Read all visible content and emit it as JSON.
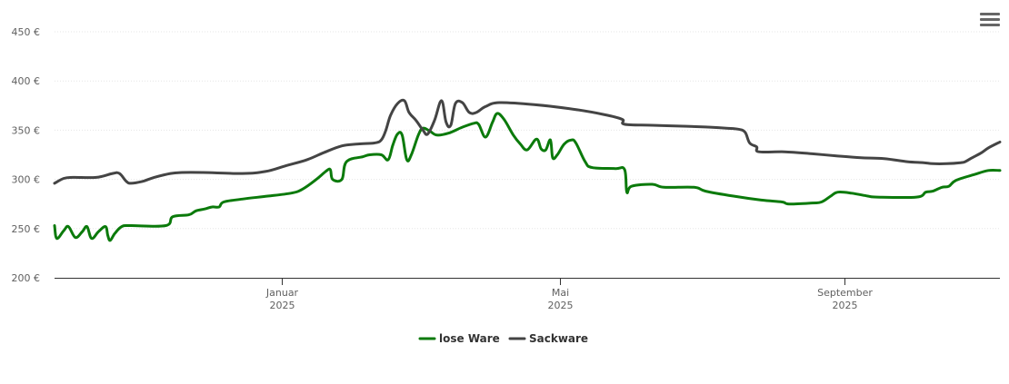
{
  "colors": {
    "lose_ware": "#0b7a0b",
    "sackware": "#444444",
    "axis": "#333333",
    "grid": "#e6e6e6"
  },
  "menu": {
    "icon": "hamburger-menu-icon"
  },
  "chart_data": {
    "type": "line",
    "title": "",
    "xlabel": "",
    "ylabel": "",
    "ylim": [
      200,
      450
    ],
    "y_ticks": [
      200,
      250,
      300,
      350,
      400,
      450
    ],
    "y_tick_labels": [
      "200 €",
      "250 €",
      "300 €",
      "350 €",
      "400 €",
      "450 €"
    ],
    "x_range": [
      "2024-09-25",
      "2025-11-07"
    ],
    "x_ticks": [
      {
        "date": "2025-01-01",
        "label_line1": "Januar",
        "label_line2": "2025"
      },
      {
        "date": "2025-05-01",
        "label_line1": "Mai",
        "label_line2": "2025"
      },
      {
        "date": "2025-09-01",
        "label_line1": "September",
        "label_line2": "2025"
      }
    ],
    "grid": true,
    "legend_position": "bottom-center",
    "series": [
      {
        "name": "lose Ware",
        "color": "#0b7a0b",
        "points": [
          [
            "2024-09-25",
            253
          ],
          [
            "2024-09-26",
            240
          ],
          [
            "2024-09-29",
            248
          ],
          [
            "2024-10-01",
            252
          ],
          [
            "2024-10-04",
            241
          ],
          [
            "2024-10-07",
            247
          ],
          [
            "2024-10-09",
            252
          ],
          [
            "2024-10-11",
            240
          ],
          [
            "2024-10-14",
            247
          ],
          [
            "2024-10-17",
            252
          ],
          [
            "2024-10-18",
            243
          ],
          [
            "2024-10-19",
            238
          ],
          [
            "2024-10-21",
            245
          ],
          [
            "2024-10-24",
            252
          ],
          [
            "2024-10-28",
            253
          ],
          [
            "2024-11-12",
            253
          ],
          [
            "2024-11-15",
            262
          ],
          [
            "2024-11-22",
            264
          ],
          [
            "2024-11-25",
            268
          ],
          [
            "2024-11-29",
            270
          ],
          [
            "2024-12-02",
            272
          ],
          [
            "2024-12-05",
            272
          ],
          [
            "2024-12-07",
            277
          ],
          [
            "2024-12-15",
            280
          ],
          [
            "2024-12-26",
            283
          ],
          [
            "2025-01-05",
            286
          ],
          [
            "2025-01-10",
            290
          ],
          [
            "2025-01-16",
            300
          ],
          [
            "2025-01-20",
            308
          ],
          [
            "2025-01-22",
            310
          ],
          [
            "2025-01-23",
            300
          ],
          [
            "2025-01-27",
            300
          ],
          [
            "2025-01-29",
            318
          ],
          [
            "2025-02-05",
            323
          ],
          [
            "2025-02-08",
            325
          ],
          [
            "2025-02-13",
            325
          ],
          [
            "2025-02-16",
            320
          ],
          [
            "2025-02-18",
            335
          ],
          [
            "2025-02-20",
            346
          ],
          [
            "2025-02-22",
            345
          ],
          [
            "2025-02-24",
            320
          ],
          [
            "2025-02-26",
            325
          ],
          [
            "2025-03-01",
            345
          ],
          [
            "2025-03-03",
            352
          ],
          [
            "2025-03-06",
            349
          ],
          [
            "2025-03-09",
            345
          ],
          [
            "2025-03-14",
            347
          ],
          [
            "2025-03-20",
            353
          ],
          [
            "2025-03-25",
            357
          ],
          [
            "2025-03-27",
            356
          ],
          [
            "2025-03-30",
            343
          ],
          [
            "2025-04-02",
            358
          ],
          [
            "2025-04-04",
            367
          ],
          [
            "2025-04-07",
            361
          ],
          [
            "2025-04-11",
            345
          ],
          [
            "2025-04-14",
            336
          ],
          [
            "2025-04-17",
            330
          ],
          [
            "2025-04-21",
            341
          ],
          [
            "2025-04-23",
            331
          ],
          [
            "2025-04-25",
            330
          ],
          [
            "2025-04-27",
            340
          ],
          [
            "2025-04-28",
            322
          ],
          [
            "2025-04-30",
            325
          ],
          [
            "2025-05-03",
            336
          ],
          [
            "2025-05-06",
            340
          ],
          [
            "2025-05-08",
            337
          ],
          [
            "2025-05-12",
            318
          ],
          [
            "2025-05-15",
            312
          ],
          [
            "2025-05-25",
            311
          ],
          [
            "2025-05-29",
            310
          ],
          [
            "2025-05-30",
            287
          ],
          [
            "2025-06-01",
            293
          ],
          [
            "2025-06-10",
            295
          ],
          [
            "2025-06-15",
            292
          ],
          [
            "2025-06-28",
            292
          ],
          [
            "2025-07-03",
            288
          ],
          [
            "2025-07-15",
            283
          ],
          [
            "2025-07-27",
            279
          ],
          [
            "2025-08-05",
            277
          ],
          [
            "2025-08-08",
            275
          ],
          [
            "2025-08-18",
            276
          ],
          [
            "2025-08-22",
            277
          ],
          [
            "2025-08-26",
            283
          ],
          [
            "2025-08-29",
            287
          ],
          [
            "2025-09-04",
            286
          ],
          [
            "2025-09-11",
            283
          ],
          [
            "2025-09-15",
            282
          ],
          [
            "2025-10-02",
            282
          ],
          [
            "2025-10-06",
            287
          ],
          [
            "2025-10-09",
            288
          ],
          [
            "2025-10-13",
            292
          ],
          [
            "2025-10-16",
            293
          ],
          [
            "2025-10-19",
            299
          ],
          [
            "2025-10-27",
            305
          ],
          [
            "2025-11-02",
            309
          ],
          [
            "2025-11-07",
            309
          ]
        ]
      },
      {
        "name": "Sackware",
        "color": "#444444",
        "points": [
          [
            "2024-09-25",
            296
          ],
          [
            "2024-09-29",
            301
          ],
          [
            "2024-10-03",
            302
          ],
          [
            "2024-10-13",
            302
          ],
          [
            "2024-10-20",
            306
          ],
          [
            "2024-10-23",
            306
          ],
          [
            "2024-10-26",
            298
          ],
          [
            "2024-10-28",
            296
          ],
          [
            "2024-11-02",
            298
          ],
          [
            "2024-11-07",
            302
          ],
          [
            "2024-11-14",
            306
          ],
          [
            "2024-11-19",
            307
          ],
          [
            "2024-11-28",
            307
          ],
          [
            "2024-12-15",
            306
          ],
          [
            "2024-12-25",
            308
          ],
          [
            "2025-01-03",
            314
          ],
          [
            "2025-01-12",
            320
          ],
          [
            "2025-01-19",
            327
          ],
          [
            "2025-01-27",
            334
          ],
          [
            "2025-02-03",
            336
          ],
          [
            "2025-02-10",
            337
          ],
          [
            "2025-02-13",
            340
          ],
          [
            "2025-02-15",
            350
          ],
          [
            "2025-02-17",
            365
          ],
          [
            "2025-02-20",
            377
          ],
          [
            "2025-02-23",
            380
          ],
          [
            "2025-02-25",
            368
          ],
          [
            "2025-02-28",
            360
          ],
          [
            "2025-03-03",
            350
          ],
          [
            "2025-03-05",
            346
          ],
          [
            "2025-03-08",
            360
          ],
          [
            "2025-03-11",
            380
          ],
          [
            "2025-03-13",
            358
          ],
          [
            "2025-03-15",
            355
          ],
          [
            "2025-03-17",
            377
          ],
          [
            "2025-03-20",
            378
          ],
          [
            "2025-03-23",
            368
          ],
          [
            "2025-03-26",
            368
          ],
          [
            "2025-03-30",
            374
          ],
          [
            "2025-04-05",
            378
          ],
          [
            "2025-04-20",
            376
          ],
          [
            "2025-05-05",
            372
          ],
          [
            "2025-05-20",
            366
          ],
          [
            "2025-05-28",
            361
          ],
          [
            "2025-05-29",
            356
          ],
          [
            "2025-06-10",
            355
          ],
          [
            "2025-06-25",
            354
          ],
          [
            "2025-07-05",
            353
          ],
          [
            "2025-07-12",
            352
          ],
          [
            "2025-07-17",
            351
          ],
          [
            "2025-07-20",
            348
          ],
          [
            "2025-07-22",
            337
          ],
          [
            "2025-07-25",
            333
          ],
          [
            "2025-07-26",
            328
          ],
          [
            "2025-08-06",
            328
          ],
          [
            "2025-08-18",
            326
          ],
          [
            "2025-08-28",
            324
          ],
          [
            "2025-09-08",
            322
          ],
          [
            "2025-09-18",
            321
          ],
          [
            "2025-09-28",
            318
          ],
          [
            "2025-10-05",
            317
          ],
          [
            "2025-10-09",
            316
          ],
          [
            "2025-10-15",
            316
          ],
          [
            "2025-10-21",
            317
          ],
          [
            "2025-10-23",
            318
          ],
          [
            "2025-10-26",
            322
          ],
          [
            "2025-10-30",
            327
          ],
          [
            "2025-11-02",
            332
          ],
          [
            "2025-11-07",
            338
          ]
        ]
      }
    ]
  }
}
